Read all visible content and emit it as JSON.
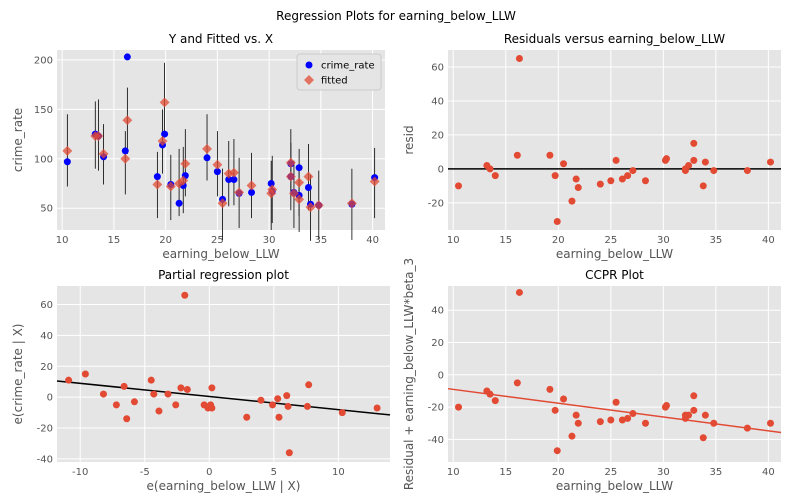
{
  "figure": {
    "suptitle": "Regression Plots for earning_below_LLW"
  },
  "colors": {
    "panel_bg": "#e5e5e5",
    "grid": "#ffffff",
    "red": "#e24a33",
    "blue": "#0000ff",
    "black": "#000000"
  },
  "chart_data": [
    {
      "type": "scatter",
      "title": "Y and Fitted vs. X",
      "xlabel": "earning_below_LLW",
      "ylabel": "crime_rate",
      "xlim": [
        9.5,
        41.2
      ],
      "ylim": [
        28,
        210
      ],
      "xticks": [
        10,
        15,
        20,
        25,
        30,
        35,
        40
      ],
      "yticks": [
        50,
        100,
        150,
        200
      ],
      "legend": {
        "placement": "top-right",
        "entries": [
          "crime_rate",
          "fitted"
        ]
      },
      "series": [
        {
          "name": "crime_rate",
          "marker": "circle",
          "color": "#0000ff",
          "points": [
            [
              10.5,
              97
            ],
            [
              13.2,
              125
            ],
            [
              13.5,
              123
            ],
            [
              14.0,
              102
            ],
            [
              16.1,
              108
            ],
            [
              16.3,
              203
            ],
            [
              19.2,
              82
            ],
            [
              19.7,
              114
            ],
            [
              19.9,
              125
            ],
            [
              20.5,
              74
            ],
            [
              21.3,
              55
            ],
            [
              21.7,
              73
            ],
            [
              21.9,
              83
            ],
            [
              24.0,
              101
            ],
            [
              25.0,
              87
            ],
            [
              25.5,
              59
            ],
            [
              26.1,
              79
            ],
            [
              26.6,
              79
            ],
            [
              27.1,
              65
            ],
            [
              28.3,
              66
            ],
            [
              30.2,
              75
            ],
            [
              30.3,
              67
            ],
            [
              32.1,
              82
            ],
            [
              32.1,
              95
            ],
            [
              32.4,
              66
            ],
            [
              32.9,
              91
            ],
            [
              32.9,
              63
            ],
            [
              33.8,
              71
            ],
            [
              34.0,
              54
            ],
            [
              34.8,
              53
            ],
            [
              38.0,
              54
            ],
            [
              40.2,
              81
            ]
          ]
        },
        {
          "name": "fitted",
          "marker": "diamond",
          "color": "#e24a33",
          "points": [
            [
              10.5,
              108
            ],
            [
              13.2,
              123
            ],
            [
              13.5,
              123
            ],
            [
              14.0,
              105
            ],
            [
              16.1,
              100
            ],
            [
              16.3,
              139
            ],
            [
              19.2,
              74
            ],
            [
              19.7,
              118
            ],
            [
              19.9,
              157
            ],
            [
              20.5,
              72
            ],
            [
              21.3,
              75
            ],
            [
              21.7,
              78
            ],
            [
              21.9,
              95
            ],
            [
              24.0,
              110
            ],
            [
              25.0,
              94
            ],
            [
              25.5,
              55
            ],
            [
              26.1,
              85
            ],
            [
              26.6,
              86
            ],
            [
              27.1,
              66
            ],
            [
              28.3,
              73
            ],
            [
              30.2,
              65
            ],
            [
              30.3,
              69
            ],
            [
              32.1,
              82
            ],
            [
              32.1,
              96
            ],
            [
              32.4,
              65
            ],
            [
              32.9,
              76
            ],
            [
              32.9,
              59
            ],
            [
              33.8,
              82
            ],
            [
              34.0,
              51
            ],
            [
              34.8,
              53
            ],
            [
              38.0,
              55
            ],
            [
              40.2,
              77
            ]
          ]
        }
      ],
      "intervals": [
        [
          10.5,
          72,
          145
        ],
        [
          13.2,
          90,
          158
        ],
        [
          13.5,
          88,
          160
        ],
        [
          14.0,
          74,
          135
        ],
        [
          16.1,
          64,
          128
        ],
        [
          16.3,
          105,
          172
        ],
        [
          19.2,
          40,
          107
        ],
        [
          19.7,
          85,
          150
        ],
        [
          19.9,
          122,
          197
        ],
        [
          20.5,
          38,
          104
        ],
        [
          21.3,
          42,
          110
        ],
        [
          21.7,
          45,
          112
        ],
        [
          21.9,
          62,
          130
        ],
        [
          24.0,
          78,
          145
        ],
        [
          25.0,
          62,
          128
        ],
        [
          25.5,
          18,
          90
        ],
        [
          26.1,
          52,
          118
        ],
        [
          26.6,
          53,
          120
        ],
        [
          27.1,
          30,
          101
        ],
        [
          28.3,
          40,
          106
        ],
        [
          30.2,
          28,
          98
        ],
        [
          30.3,
          35,
          103
        ],
        [
          32.1,
          48,
          116
        ],
        [
          32.1,
          63,
          130
        ],
        [
          32.4,
          30,
          98
        ],
        [
          32.9,
          42,
          110
        ],
        [
          32.9,
          26,
          93
        ],
        [
          33.8,
          48,
          115
        ],
        [
          34.0,
          17,
          84
        ],
        [
          34.8,
          19,
          88
        ],
        [
          38.0,
          18,
          90
        ],
        [
          40.2,
          40,
          111
        ]
      ]
    },
    {
      "type": "scatter",
      "title": "Residuals versus earning_below_LLW",
      "xlabel": "earning_below_LLW",
      "ylabel": "resid",
      "xlim": [
        9.5,
        41.2
      ],
      "ylim": [
        -36,
        70
      ],
      "xticks": [
        10,
        15,
        20,
        25,
        30,
        35,
        40
      ],
      "yticks": [
        -20,
        0,
        20,
        40,
        60
      ],
      "reference_line": {
        "y": 0
      },
      "series": [
        {
          "color": "#e24a33",
          "points": [
            [
              10.5,
              -10
            ],
            [
              13.2,
              2
            ],
            [
              13.5,
              0
            ],
            [
              14.0,
              -4
            ],
            [
              16.1,
              8
            ],
            [
              16.3,
              65
            ],
            [
              19.2,
              8
            ],
            [
              19.7,
              -4
            ],
            [
              19.9,
              -31
            ],
            [
              20.5,
              3
            ],
            [
              21.3,
              -19
            ],
            [
              21.7,
              -6
            ],
            [
              21.9,
              -11
            ],
            [
              24.0,
              -9
            ],
            [
              25.0,
              -7
            ],
            [
              25.5,
              5
            ],
            [
              26.1,
              -6
            ],
            [
              26.6,
              -4
            ],
            [
              27.1,
              -1
            ],
            [
              28.3,
              -7
            ],
            [
              30.2,
              5
            ],
            [
              30.3,
              6
            ],
            [
              32.1,
              0
            ],
            [
              32.1,
              -1
            ],
            [
              32.4,
              2
            ],
            [
              32.9,
              15
            ],
            [
              32.9,
              5
            ],
            [
              33.8,
              -10
            ],
            [
              34.0,
              4
            ],
            [
              34.8,
              -1
            ],
            [
              38.0,
              -1
            ],
            [
              40.2,
              4
            ]
          ]
        }
      ]
    },
    {
      "type": "scatter",
      "title": "Partial regression plot",
      "xlabel": "e(earning_below_LLW | X)",
      "ylabel": "e(crime_rate | X)",
      "xlim": [
        -11.8,
        14.0
      ],
      "ylim": [
        -42,
        72
      ],
      "xticks": [
        -10,
        -5,
        0,
        5,
        10
      ],
      "yticks": [
        -40,
        -20,
        0,
        20,
        40,
        60
      ],
      "fit_line": {
        "x": [
          -11.8,
          14.0
        ],
        "y": [
          10.5,
          -11.5
        ]
      },
      "series": [
        {
          "color": "#e24a33",
          "points": [
            [
              -10.9,
              11
            ],
            [
              -9.6,
              15
            ],
            [
              -8.2,
              2
            ],
            [
              -7.2,
              -5
            ],
            [
              -6.6,
              7
            ],
            [
              -6.4,
              -14
            ],
            [
              -5.8,
              -3
            ],
            [
              -4.5,
              11
            ],
            [
              -4.3,
              2
            ],
            [
              -3.9,
              -9
            ],
            [
              -3.2,
              2
            ],
            [
              -2.6,
              -5
            ],
            [
              -2.2,
              6
            ],
            [
              -1.9,
              66
            ],
            [
              -1.7,
              5
            ],
            [
              -0.4,
              -5
            ],
            [
              -0.1,
              -7
            ],
            [
              0.1,
              -5
            ],
            [
              0.2,
              6
            ],
            [
              0.2,
              -7
            ],
            [
              2.9,
              -13
            ],
            [
              4.0,
              -2
            ],
            [
              4.9,
              -5
            ],
            [
              5.3,
              -1
            ],
            [
              5.4,
              -13
            ],
            [
              6.0,
              1
            ],
            [
              6.1,
              -6
            ],
            [
              6.2,
              -36
            ],
            [
              7.6,
              -6
            ],
            [
              7.7,
              8
            ],
            [
              10.3,
              -10
            ],
            [
              13.0,
              -7
            ]
          ]
        }
      ]
    },
    {
      "type": "scatter",
      "title": "CCPR Plot",
      "xlabel": "earning_below_LLW",
      "ylabel": "Residual + earning_below_LLW*beta_3",
      "xlim": [
        9.5,
        41.2
      ],
      "ylim": [
        -54,
        55
      ],
      "xticks": [
        10,
        15,
        20,
        25,
        30,
        35,
        40
      ],
      "yticks": [
        -40,
        -20,
        0,
        20,
        40
      ],
      "fit_line": {
        "x": [
          9.5,
          41.2
        ],
        "y": [
          -8.6,
          -35.7
        ]
      },
      "series": [
        {
          "color": "#e24a33",
          "points": [
            [
              10.5,
              -20
            ],
            [
              13.2,
              -10
            ],
            [
              13.5,
              -12
            ],
            [
              14.0,
              -16
            ],
            [
              16.1,
              -5
            ],
            [
              16.3,
              51
            ],
            [
              19.2,
              -9
            ],
            [
              19.7,
              -22
            ],
            [
              19.9,
              -47
            ],
            [
              20.5,
              -15
            ],
            [
              21.3,
              -38
            ],
            [
              21.7,
              -25
            ],
            [
              21.9,
              -30
            ],
            [
              24.0,
              -29
            ],
            [
              25.0,
              -28
            ],
            [
              25.5,
              -17
            ],
            [
              26.1,
              -28
            ],
            [
              26.6,
              -27
            ],
            [
              27.1,
              -24
            ],
            [
              28.3,
              -30
            ],
            [
              30.2,
              -20
            ],
            [
              30.3,
              -19
            ],
            [
              32.1,
              -27
            ],
            [
              32.1,
              -25
            ],
            [
              32.4,
              -25
            ],
            [
              32.9,
              -13
            ],
            [
              32.9,
              -22
            ],
            [
              33.8,
              -39
            ],
            [
              34.0,
              -25
            ],
            [
              34.8,
              -30
            ],
            [
              38.0,
              -33
            ],
            [
              40.2,
              -30
            ]
          ]
        }
      ]
    }
  ]
}
